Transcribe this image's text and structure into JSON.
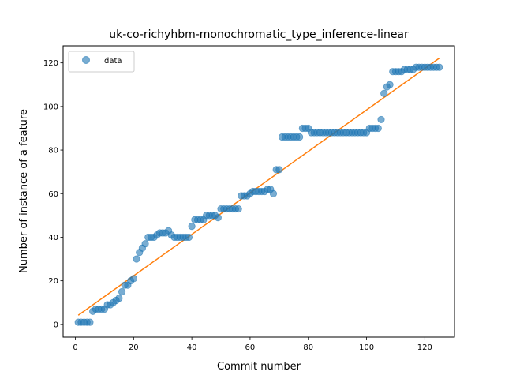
{
  "chart_data": {
    "type": "scatter",
    "title": "uk-co-richyhbm-monochromatic_type_inference-linear",
    "xlabel": "Commit number",
    "ylabel": "Number of instance of a feature",
    "xlim": [
      -4.2,
      130.2
    ],
    "ylim": [
      -5.85,
      127.85
    ],
    "x_ticks": [
      0,
      20,
      40,
      60,
      80,
      100,
      120
    ],
    "y_ticks": [
      0,
      20,
      40,
      60,
      80,
      100,
      120
    ],
    "grid": false,
    "legend": {
      "position": "top-left",
      "entries": [
        "data"
      ]
    },
    "colors": {
      "data": "#1f77b4",
      "fit": "#ff7f0e"
    },
    "series": [
      {
        "name": "data",
        "kind": "scatter",
        "x": [
          1,
          2,
          3,
          4,
          5,
          6,
          7,
          8,
          9,
          10,
          11,
          12,
          13,
          14,
          15,
          16,
          17,
          18,
          19,
          20,
          21,
          22,
          23,
          24,
          25,
          26,
          27,
          28,
          29,
          30,
          31,
          32,
          33,
          34,
          35,
          36,
          37,
          38,
          39,
          40,
          41,
          42,
          43,
          44,
          45,
          46,
          47,
          48,
          49,
          50,
          51,
          52,
          53,
          54,
          55,
          56,
          57,
          58,
          59,
          60,
          61,
          62,
          63,
          64,
          65,
          66,
          67,
          68,
          69,
          70,
          71,
          72,
          73,
          74,
          75,
          76,
          77,
          78,
          79,
          80,
          81,
          82,
          83,
          84,
          85,
          86,
          87,
          88,
          89,
          90,
          91,
          92,
          93,
          94,
          95,
          96,
          97,
          98,
          99,
          100,
          101,
          102,
          103,
          104,
          105,
          106,
          107,
          108,
          109,
          110,
          111,
          112,
          113,
          114,
          115,
          116,
          117,
          118,
          119,
          120,
          121,
          122,
          123,
          124,
          125
        ],
        "y": [
          1,
          1,
          1,
          1,
          1,
          6,
          7,
          7,
          7,
          7,
          9,
          9,
          10,
          11,
          12,
          15,
          18,
          18,
          20,
          21,
          30,
          33,
          35,
          37,
          40,
          40,
          40,
          41,
          42,
          42,
          42,
          43,
          41,
          40,
          40,
          40,
          40,
          40,
          40,
          45,
          48,
          48,
          48,
          48,
          50,
          50,
          50,
          50,
          49,
          53,
          53,
          53,
          53,
          53,
          53,
          53,
          59,
          59,
          59,
          60,
          61,
          61,
          61,
          61,
          61,
          62,
          62,
          60,
          71,
          71,
          86,
          86,
          86,
          86,
          86,
          86,
          86,
          90,
          90,
          90,
          88,
          88,
          88,
          88,
          88,
          88,
          88,
          88,
          88,
          88,
          88,
          88,
          88,
          88,
          88,
          88,
          88,
          88,
          88,
          88,
          90,
          90,
          90,
          90,
          94,
          106,
          109,
          110,
          116,
          116,
          116,
          116,
          117,
          117,
          117,
          117,
          118,
          118,
          118,
          118,
          118,
          118,
          118,
          118,
          118
        ]
      },
      {
        "name": "",
        "kind": "line",
        "x": [
          1,
          125
        ],
        "y": [
          4.2,
          122.2
        ]
      }
    ]
  }
}
